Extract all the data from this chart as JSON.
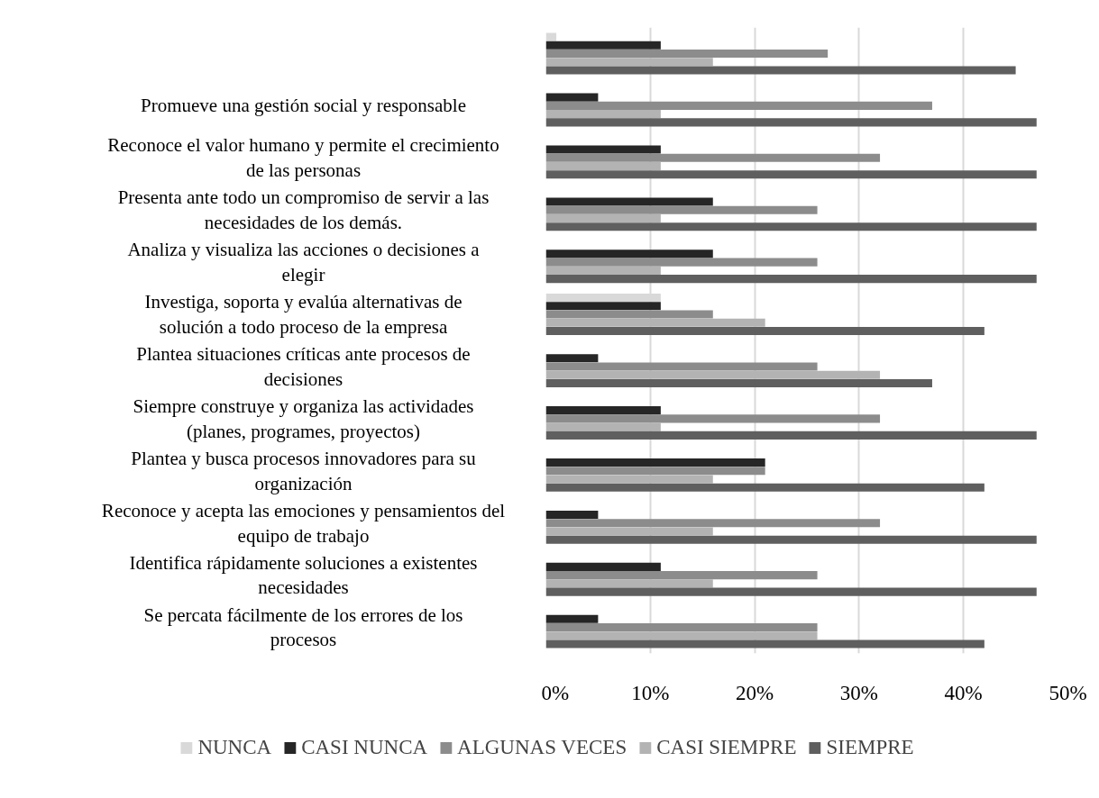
{
  "chart_data": {
    "type": "bar",
    "orientation": "horizontal",
    "categories": [
      null,
      "Promueve una gestión social y responsable",
      "Reconoce el valor humano y permite el crecimiento de las personas",
      "Presenta ante todo un compromiso de servir a las necesidades de los demás.",
      "Analiza y visualiza las acciones o decisiones a elegir",
      "Investiga, soporta y evalúa alternativas de solución a todo proceso de la empresa",
      "Plantea situaciones críticas ante procesos de decisiones",
      "Siempre construye y organiza las actividades (planes, programes, proyectos)",
      "Plantea y busca procesos innovadores para su organización",
      "Reconoce y acepta las emociones y pensamientos del equipo de trabajo",
      "Identifica rápidamente soluciones a existentes necesidades",
      "Se percata fácilmente de los errores de los procesos"
    ],
    "series": [
      {
        "name": "NUNCA",
        "color": "#d9d9d9",
        "values": [
          1,
          null,
          null,
          null,
          null,
          11,
          null,
          null,
          null,
          null,
          null,
          null
        ]
      },
      {
        "name": "CASI NUNCA",
        "color": "#262626",
        "values": [
          11,
          5,
          11,
          16,
          16,
          11,
          5,
          11,
          21,
          5,
          11,
          5
        ]
      },
      {
        "name": "ALGUNAS VECES",
        "color": "#8c8c8c",
        "values": [
          27,
          37,
          32,
          26,
          26,
          16,
          26,
          32,
          21,
          32,
          26,
          26
        ]
      },
      {
        "name": "CASI SIEMPRE",
        "color": "#b3b3b3",
        "values": [
          16,
          11,
          11,
          11,
          11,
          21,
          32,
          11,
          16,
          16,
          16,
          26
        ]
      },
      {
        "name": "SIEMPRE",
        "color": "#5f5f5f",
        "values": [
          45,
          47,
          47,
          47,
          47,
          42,
          37,
          47,
          42,
          47,
          47,
          42
        ]
      }
    ],
    "xlim": [
      0,
      50
    ],
    "xticks": [
      {
        "value": 0,
        "label": "0%"
      },
      {
        "value": 10,
        "label": "10%"
      },
      {
        "value": 20,
        "label": "20%"
      },
      {
        "value": 30,
        "label": "30%"
      },
      {
        "value": 40,
        "label": "40%"
      },
      {
        "value": 50,
        "label": "50%"
      }
    ],
    "grid": "x",
    "legend": "bottom"
  }
}
